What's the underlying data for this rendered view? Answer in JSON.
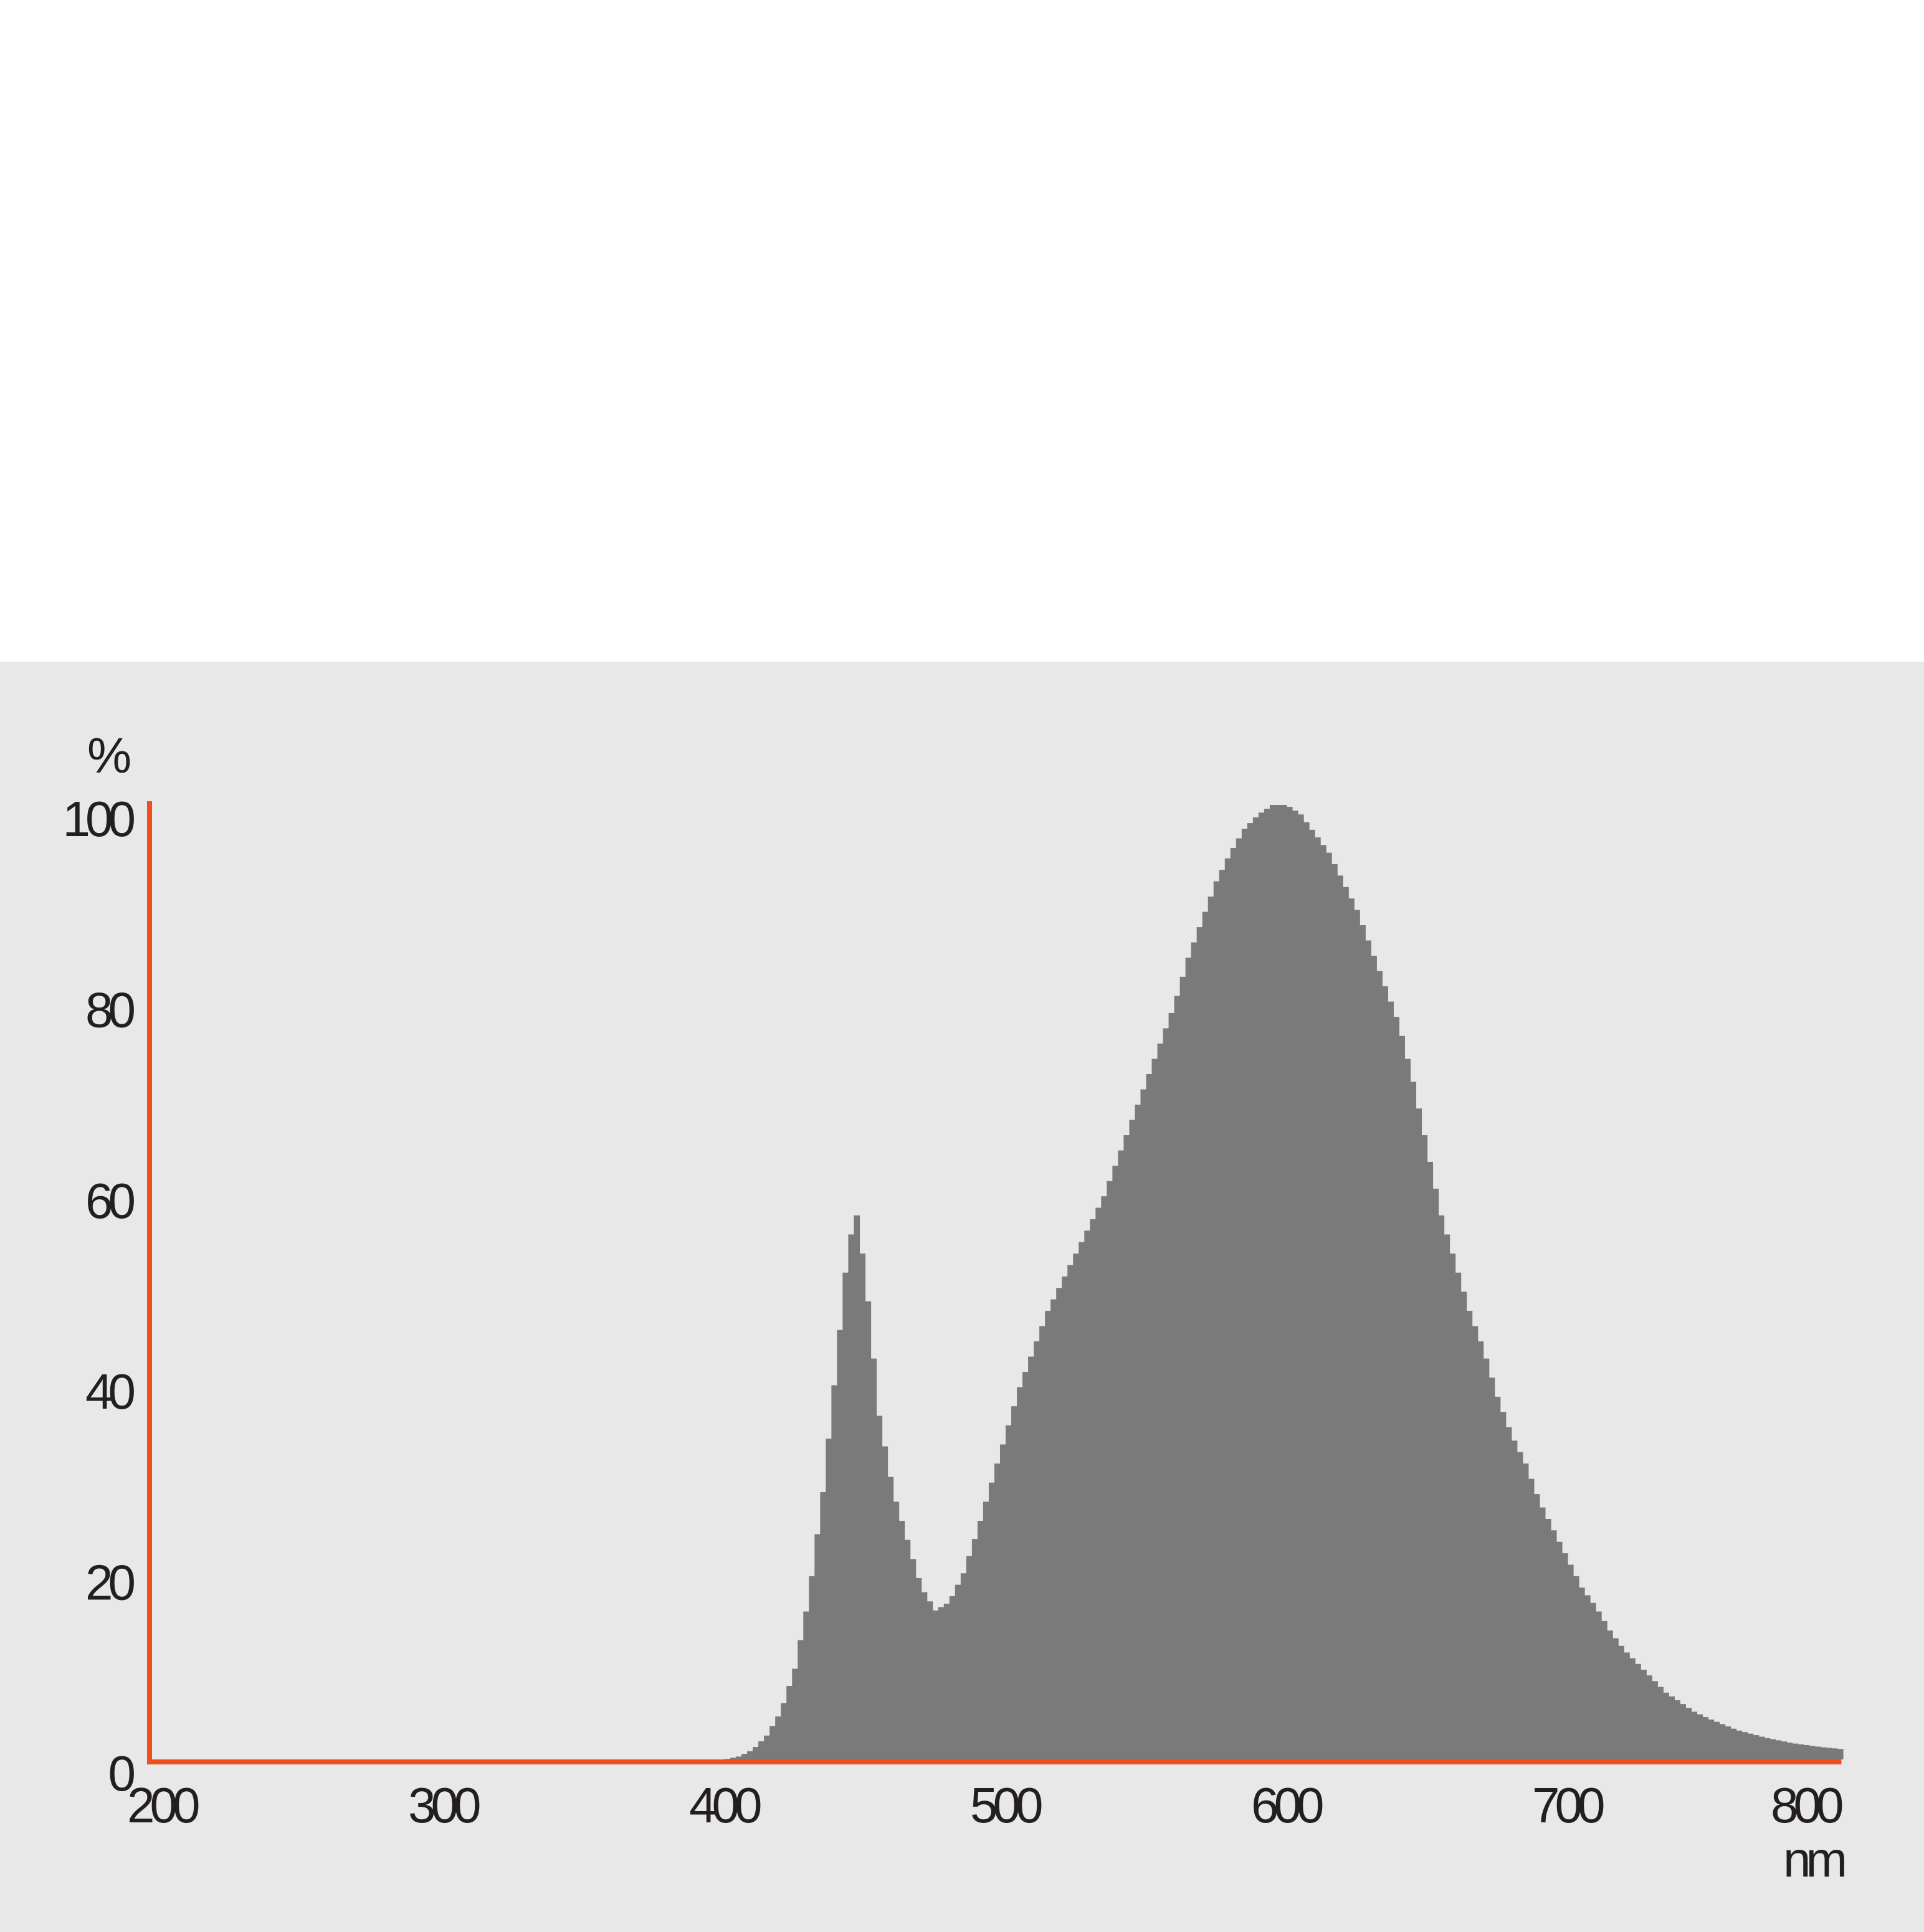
{
  "chart_data": {
    "type": "area",
    "xlabel": "nm",
    "ylabel": "%",
    "xlim": [
      195,
      800
    ],
    "ylim": [
      0,
      100
    ],
    "xticks": [
      "200",
      "300",
      "400",
      "500",
      "600",
      "700",
      "800"
    ],
    "yticks": [
      "0",
      "20",
      "40",
      "60",
      "80",
      "100"
    ],
    "grid": false,
    "colors": {
      "fill": "#7b7a7b",
      "axis": "#f04e1a",
      "background": "#e8e8e8",
      "text": "#231f20"
    },
    "x": [
      195,
      400,
      405,
      410,
      415,
      420,
      425,
      430,
      435,
      440,
      443,
      445,
      447,
      450,
      455,
      460,
      465,
      470,
      475,
      480,
      485,
      490,
      495,
      500,
      505,
      510,
      515,
      520,
      525,
      530,
      535,
      540,
      545,
      550,
      555,
      560,
      565,
      570,
      575,
      580,
      585,
      590,
      595,
      600,
      605,
      610,
      615,
      620,
      625,
      630,
      635,
      640,
      645,
      650,
      655,
      660,
      665,
      670,
      675,
      680,
      685,
      690,
      695,
      700,
      705,
      710,
      715,
      720,
      725,
      730,
      735,
      740,
      745,
      750,
      755,
      760,
      770,
      780,
      790,
      797
    ],
    "values": [
      0,
      0,
      0.3,
      1,
      2.5,
      5,
      9.5,
      17,
      28,
      42,
      51,
      55,
      57,
      51,
      36,
      28,
      23,
      18,
      15.6,
      16.5,
      19.5,
      24,
      29,
      34,
      39,
      43,
      47,
      50,
      53,
      56,
      59,
      63,
      67,
      71,
      75,
      79,
      84,
      88,
      92,
      95,
      97.5,
      99,
      100,
      100,
      99,
      97,
      95,
      92,
      89,
      85,
      81,
      77,
      71,
      64,
      57,
      52,
      47,
      43,
      38,
      34,
      31,
      27,
      24,
      21,
      18,
      16,
      13.5,
      11.5,
      10,
      8.5,
      7,
      6,
      5,
      4.3,
      3.7,
      3.1,
      2.3,
      1.7,
      1.3,
      1.1
    ]
  }
}
